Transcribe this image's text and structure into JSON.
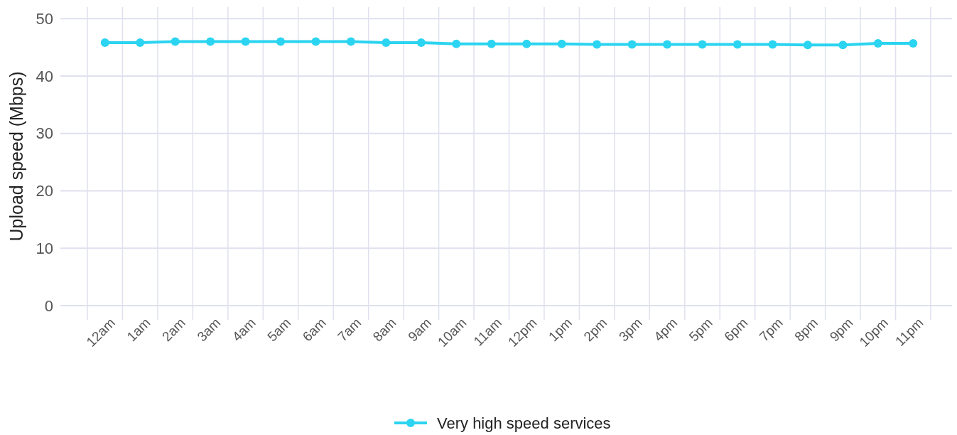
{
  "chart_data": {
    "type": "line",
    "ylabel": "Upload speed (Mbps)",
    "categories": [
      "12am",
      "1am",
      "2am",
      "3am",
      "4am",
      "5am",
      "6am",
      "7am",
      "8am",
      "9am",
      "10am",
      "11am",
      "12pm",
      "1pm",
      "2pm",
      "3pm",
      "4pm",
      "5pm",
      "6pm",
      "7pm",
      "8pm",
      "9pm",
      "10pm",
      "11pm"
    ],
    "series": [
      {
        "name": "Very high speed services",
        "color": "#2bd4f0",
        "values": [
          45.8,
          45.8,
          46,
          46,
          46,
          46,
          46,
          46,
          45.8,
          45.8,
          45.6,
          45.6,
          45.6,
          45.6,
          45.5,
          45.5,
          45.5,
          45.5,
          45.5,
          45.5,
          45.4,
          45.4,
          45.7,
          45.7
        ]
      }
    ],
    "ylim": [
      0,
      52
    ],
    "yticks": [
      0,
      10,
      20,
      30,
      40,
      50
    ],
    "grid": true,
    "legend": "bottom",
    "marker": "circle",
    "line_style": "solid"
  }
}
